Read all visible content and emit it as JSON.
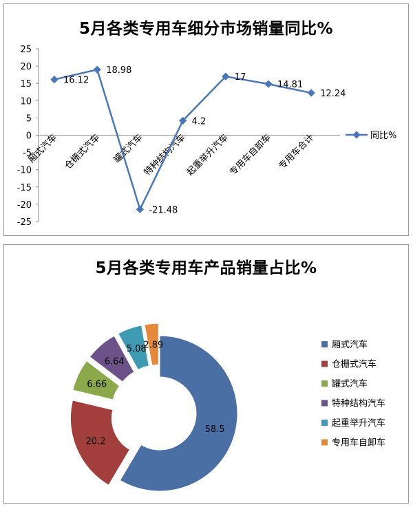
{
  "chart_data": [
    {
      "type": "line",
      "title": "5月各类专用车细分市场销量同比%",
      "categories": [
        "厢式汽车",
        "仓栅式汽车",
        "罐式汽车",
        "特种结构汽车",
        "起重举升汽车",
        "专用车自卸车",
        "专用车合计"
      ],
      "series": [
        {
          "name": "同比%",
          "values": [
            16.12,
            18.98,
            -21.48,
            4.2,
            17,
            14.81,
            12.24
          ],
          "color": "#4a76b5"
        }
      ],
      "data_labels": [
        "16.12",
        "18.98",
        "-21.48",
        "4.2",
        "17",
        "14.81",
        "12.24"
      ],
      "ylim": [
        -25,
        25
      ],
      "yticks": [
        25,
        20,
        15,
        10,
        5,
        0,
        -5,
        -10,
        -15,
        -20,
        -25
      ],
      "legend_position": "right",
      "grid": false
    },
    {
      "type": "pie",
      "subtype": "donut",
      "title": "5月各类专用车产品销量占比%",
      "categories": [
        "厢式汽车",
        "仓栅式汽车",
        "罐式汽车",
        "特种结构汽车",
        "起重举升汽车",
        "专用车自卸车"
      ],
      "values": [
        58.5,
        20.2,
        6.66,
        6.64,
        5.08,
        2.89
      ],
      "labels": [
        "58.5",
        "20.2",
        "6.66",
        "6.64",
        "5.08",
        "2.89"
      ],
      "colors": [
        "#4a6fa5",
        "#a23f3c",
        "#8ba94a",
        "#6c5289",
        "#3f9bb4",
        "#e58a3a"
      ],
      "legend_position": "right"
    }
  ]
}
